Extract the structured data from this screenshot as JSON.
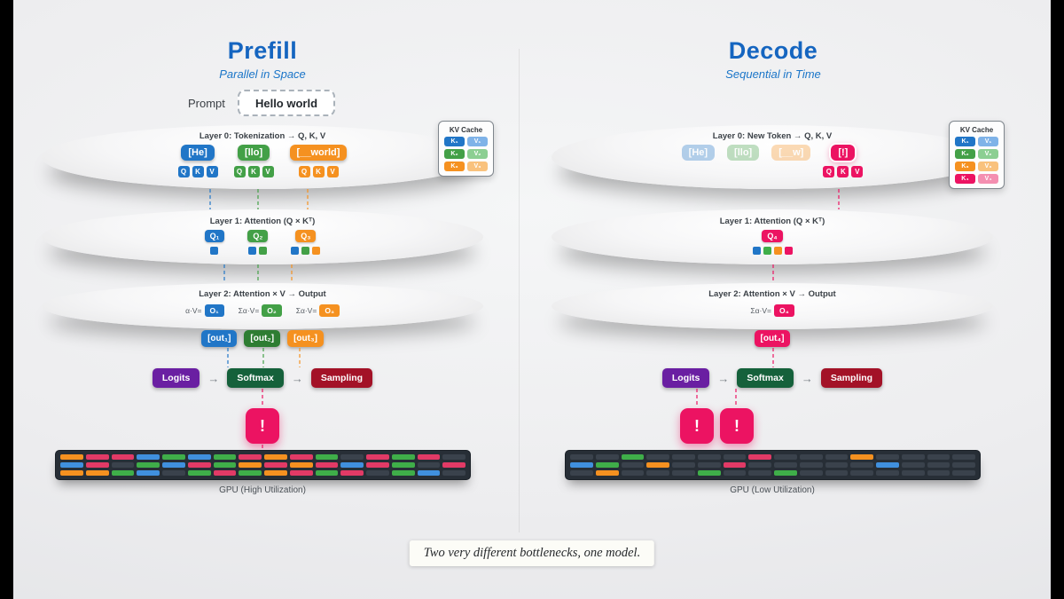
{
  "arrow": "→",
  "caption": "Two very different bottlenecks, one model.",
  "colors": {
    "blue": "#2176c7",
    "green": "#43a047",
    "orange": "#f59120",
    "pink": "#ec1362",
    "purple": "#6a1fa2",
    "softmax_green": "#15613b",
    "sampling_red": "#a31227",
    "title_blue": "#1565c0",
    "gpu_dark": "#3a424c"
  },
  "prefill": {
    "title": "Prefill",
    "subtitle": "Parallel in Space",
    "prompt": {
      "label": "Prompt",
      "value": "Hello world"
    },
    "layer0": {
      "title": "Layer 0: Tokenization → Q, K, V",
      "qkv_labels": [
        "Q",
        "K",
        "V"
      ],
      "tokens": [
        {
          "label": "[He]",
          "color": "#2176c7",
          "faded": false,
          "hot": false,
          "qkv": true
        },
        {
          "label": "[llo]",
          "color": "#43a047",
          "faded": false,
          "hot": false,
          "qkv": true
        },
        {
          "label": "[__world]",
          "color": "#f59120",
          "faded": false,
          "hot": false,
          "qkv": true
        }
      ]
    },
    "kv_cache": {
      "title": "KV Cache",
      "rows": [
        {
          "k": "K₁",
          "v": "V₁",
          "color": "#2176c7",
          "v_color": "#7fb3e8"
        },
        {
          "k": "K₂",
          "v": "V₂",
          "color": "#43a047",
          "v_color": "#8ccf92"
        },
        {
          "k": "K₃",
          "v": "V₃",
          "color": "#f59120",
          "v_color": "#f9c27d"
        }
      ]
    },
    "layer1": {
      "title": "Layer 1: Attention (Q × Kᵀ)",
      "queries": [
        {
          "label": "Q₁",
          "color": "#2176c7",
          "cells": [
            "#2176c7"
          ]
        },
        {
          "label": "Q₂",
          "color": "#43a047",
          "cells": [
            "#2176c7",
            "#43a047"
          ]
        },
        {
          "label": "Q₃",
          "color": "#f59120",
          "cells": [
            "#2176c7",
            "#43a047",
            "#f59120"
          ]
        }
      ]
    },
    "layer2": {
      "title": "Layer 2: Attention × V → Output",
      "outputs": [
        {
          "prefix": "α·V=",
          "label": "O₁",
          "color": "#2176c7"
        },
        {
          "prefix": "Σα·V=",
          "label": "O₂",
          "color": "#43a047"
        },
        {
          "prefix": "Σα·V=",
          "label": "O₃",
          "color": "#f59120"
        }
      ]
    },
    "outs": [
      {
        "label": "[out₁]",
        "color": "#2176c7"
      },
      {
        "label": "[out₂]",
        "color": "#2e7d32"
      },
      {
        "label": "[out₃]",
        "color": "#f59120"
      }
    ],
    "pipeline": [
      {
        "label": "Logits",
        "color": "#6a1fa2"
      },
      {
        "label": "Softmax",
        "color": "#15613b"
      },
      {
        "label": "Sampling",
        "color": "#a31227"
      }
    ],
    "new_tokens": [
      "!"
    ],
    "gpu": {
      "label": "GPU (High Utilization)",
      "rows": [
        [
          "#f59120",
          "#e23a66",
          "#e23a66",
          "#4090de",
          "#3fae49",
          "#4090de",
          "#3fae49",
          "#e23a66",
          "#f59120",
          "#e23a66",
          "#3fae49",
          "#3a424c",
          "#e23a66",
          "#3fae49",
          "#e23a66",
          "#3a424c"
        ],
        [
          "#4090de",
          "#e23a66",
          "#3a424c",
          "#3fae49",
          "#4090de",
          "#e23a66",
          "#3fae49",
          "#f59120",
          "#e23a66",
          "#f59120",
          "#e23a66",
          "#4090de",
          "#e23a66",
          "#3fae49",
          "#3a424c",
          "#e23a66"
        ],
        [
          "#f59120",
          "#f59120",
          "#3fae49",
          "#4090de",
          "#3a424c",
          "#3fae49",
          "#e23a66",
          "#3fae49",
          "#f59120",
          "#e23a66",
          "#3fae49",
          "#e23a66",
          "#3a424c",
          "#3fae49",
          "#4090de",
          "#3a424c"
        ]
      ]
    }
  },
  "decode": {
    "title": "Decode",
    "subtitle": "Sequential in Time",
    "layer0": {
      "title": "Layer 0: New Token → Q, K, V",
      "qkv_labels": [
        "Q",
        "K",
        "V"
      ],
      "tokens": [
        {
          "label": "[He]",
          "color": "#2176c7",
          "faded": true,
          "hot": false,
          "qkv": false
        },
        {
          "label": "[llo]",
          "color": "#43a047",
          "faded": true,
          "hot": false,
          "qkv": false
        },
        {
          "label": "[__w]",
          "color": "#f59120",
          "faded": true,
          "hot": false,
          "qkv": false
        },
        {
          "label": "[!]",
          "color": "#ec1362",
          "faded": false,
          "hot": true,
          "qkv": true
        }
      ]
    },
    "kv_cache": {
      "title": "KV Cache",
      "rows": [
        {
          "k": "K₁",
          "v": "V₁",
          "color": "#2176c7",
          "v_color": "#7fb3e8"
        },
        {
          "k": "K₂",
          "v": "V₂",
          "color": "#43a047",
          "v_color": "#8ccf92"
        },
        {
          "k": "K₃",
          "v": "V₃",
          "color": "#f59120",
          "v_color": "#f9c27d"
        },
        {
          "k": "K₄",
          "v": "V₄",
          "color": "#ec1362",
          "v_color": "#f48fb1"
        }
      ]
    },
    "layer1": {
      "title": "Layer 1: Attention (Q × Kᵀ)",
      "queries": [
        {
          "label": "Q₄",
          "color": "#ec1362",
          "cells": [
            "#2176c7",
            "#3fae49",
            "#f59120",
            "#ec1362"
          ]
        }
      ]
    },
    "layer2": {
      "title": "Layer 2: Attention × V → Output",
      "outputs": [
        {
          "prefix": "Σα·V=",
          "label": "O₄",
          "color": "#ec1362"
        }
      ]
    },
    "outs": [
      {
        "label": "[out₄]",
        "color": "#ec1362"
      }
    ],
    "pipeline": [
      {
        "label": "Logits",
        "color": "#6a1fa2"
      },
      {
        "label": "Softmax",
        "color": "#15613b"
      },
      {
        "label": "Sampling",
        "color": "#a31227"
      }
    ],
    "new_tokens": [
      "!",
      "!"
    ],
    "gpu": {
      "label": "GPU (Low Utilization)",
      "rows": [
        [
          "#3a424c",
          "#3a424c",
          "#3fae49",
          "#3a424c",
          "#3a424c",
          "#3a424c",
          "#3a424c",
          "#e23a66",
          "#3a424c",
          "#3a424c",
          "#3a424c",
          "#f59120",
          "#3a424c",
          "#3a424c",
          "#3a424c",
          "#3a424c"
        ],
        [
          "#4090de",
          "#3fae49",
          "#3a424c",
          "#f59120",
          "#3a424c",
          "#3a424c",
          "#e23a66",
          "#3a424c",
          "#3a424c",
          "#3a424c",
          "#3a424c",
          "#3a424c",
          "#4090de",
          "#3a424c",
          "#3a424c",
          "#3a424c"
        ],
        [
          "#3a424c",
          "#f59120",
          "#3a424c",
          "#3a424c",
          "#3a424c",
          "#3fae49",
          "#3a424c",
          "#3a424c",
          "#3fae49",
          "#3a424c",
          "#3a424c",
          "#3a424c",
          "#3a424c",
          "#3a424c",
          "#3a424c",
          "#3a424c"
        ]
      ]
    }
  }
}
